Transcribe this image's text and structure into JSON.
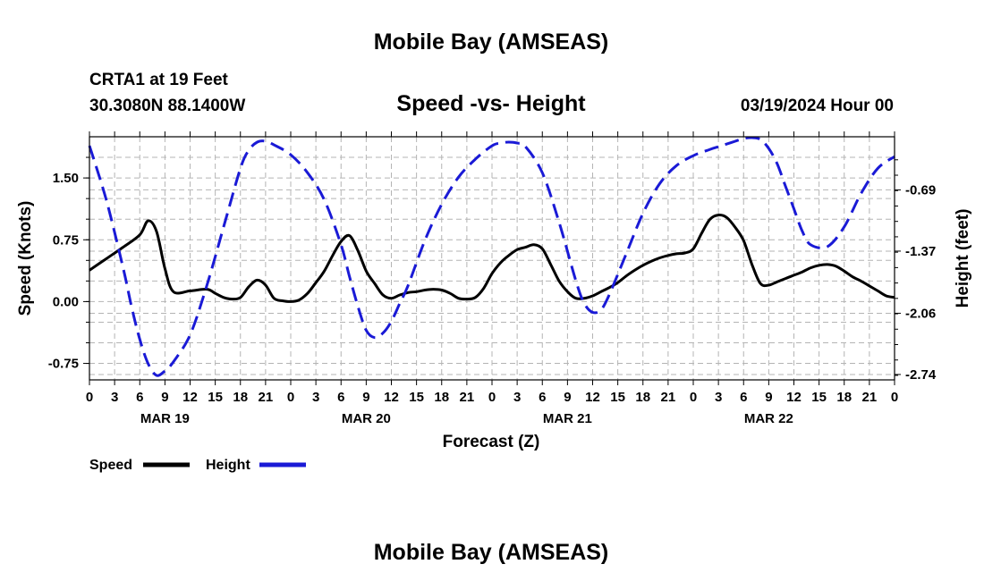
{
  "chart_data": {
    "type": "line",
    "title": "Mobile Bay (AMSEAS)",
    "footer_title": "Mobile Bay (AMSEAS)",
    "station": "CRTA1 at 19 Feet",
    "location": "30.3080N  88.1400W",
    "subtitle": "Speed -vs- Height",
    "run": "03/19/2024 Hour 00",
    "xlabel": "Forecast (Z)",
    "ylabel_left": "Speed (Knots)",
    "ylabel_right": "Height (feet)",
    "x_range_hours": [
      0,
      96
    ],
    "ylim_left": [
      -0.95,
      2.0
    ],
    "ylim_right": [
      -2.8,
      -0.1
    ],
    "left_ticks": [
      "1.50",
      "0.75",
      "0.00",
      "-0.75"
    ],
    "left_tick_values": [
      1.5,
      0.75,
      0.0,
      -0.75
    ],
    "right_ticks": [
      "-0.69",
      "-1.37",
      "-2.06",
      "-2.74"
    ],
    "right_tick_values": [
      -0.69,
      -1.37,
      -2.06,
      -2.74
    ],
    "x_tick_labels": [
      "0",
      "3",
      "6",
      "9",
      "12",
      "15",
      "18",
      "21",
      "0",
      "3",
      "6",
      "9",
      "12",
      "15",
      "18",
      "21",
      "0",
      "3",
      "6",
      "9",
      "12",
      "15",
      "18",
      "21",
      "0",
      "3",
      "6",
      "9",
      "12",
      "15",
      "18",
      "21",
      "0"
    ],
    "day_labels": [
      {
        "label": "MAR 19",
        "hour": 9
      },
      {
        "label": "MAR 20",
        "hour": 33
      },
      {
        "label": "MAR 21",
        "hour": 57
      },
      {
        "label": "MAR 22",
        "hour": 81
      }
    ],
    "grid": true,
    "legend": {
      "placement": "bottom-left",
      "items": [
        "Speed",
        "Height"
      ]
    },
    "colors": {
      "speed": "#000000",
      "height": "#1a1ad6",
      "grid": "#b4b4b4"
    },
    "series": [
      {
        "name": "Speed",
        "axis": "left",
        "x": [
          0,
          2,
          4,
          6,
          7,
          8,
          9,
          10,
          12,
          14,
          15,
          16,
          17,
          18,
          19,
          20,
          21,
          22,
          23,
          24,
          25,
          26,
          27,
          28,
          29,
          30,
          31,
          32,
          33,
          34,
          35,
          36,
          37,
          38,
          39,
          40,
          41,
          42,
          43,
          44,
          45,
          46,
          47,
          48,
          49,
          50,
          51,
          52,
          53,
          54,
          55,
          56,
          57,
          58,
          59,
          60,
          61,
          62,
          63,
          64,
          65,
          66,
          67,
          68,
          69,
          70,
          71,
          72,
          73,
          74,
          75,
          76,
          77,
          78,
          79,
          80,
          81,
          82,
          83,
          84,
          85,
          86,
          87,
          88,
          89,
          90,
          91,
          92,
          93,
          94,
          95,
          96
        ],
        "values": [
          0.38,
          0.52,
          0.66,
          0.81,
          0.98,
          0.85,
          0.4,
          0.12,
          0.13,
          0.15,
          0.1,
          0.05,
          0.03,
          0.05,
          0.18,
          0.26,
          0.2,
          0.04,
          0.01,
          0.0,
          0.02,
          0.1,
          0.23,
          0.37,
          0.56,
          0.73,
          0.8,
          0.62,
          0.37,
          0.22,
          0.08,
          0.04,
          0.08,
          0.11,
          0.12,
          0.14,
          0.15,
          0.14,
          0.1,
          0.04,
          0.03,
          0.05,
          0.16,
          0.34,
          0.47,
          0.56,
          0.63,
          0.66,
          0.69,
          0.64,
          0.45,
          0.25,
          0.12,
          0.04,
          0.04,
          0.07,
          0.12,
          0.17,
          0.23,
          0.31,
          0.38,
          0.44,
          0.49,
          0.53,
          0.56,
          0.58,
          0.59,
          0.64,
          0.83,
          1.0,
          1.05,
          1.02,
          0.9,
          0.74,
          0.45,
          0.22,
          0.2,
          0.24,
          0.28,
          0.32,
          0.36,
          0.41,
          0.44,
          0.45,
          0.43,
          0.37,
          0.3,
          0.25,
          0.19,
          0.13,
          0.07,
          0.05
        ]
      },
      {
        "name": "Height",
        "axis": "right",
        "x": [
          0,
          2,
          4,
          5,
          6,
          7,
          8,
          9,
          10,
          12,
          14,
          16,
          18,
          19,
          20,
          21,
          22,
          24,
          26,
          28,
          30,
          31,
          32,
          33,
          34,
          35,
          36,
          37,
          38,
          40,
          42,
          44,
          46,
          48,
          49,
          50,
          51,
          52,
          54,
          56,
          58,
          59,
          60,
          61,
          62,
          64,
          66,
          68,
          70,
          72,
          74,
          75,
          76,
          77,
          78,
          79,
          80,
          81,
          82,
          83,
          84,
          85,
          86,
          88,
          90,
          92,
          94,
          96
        ],
        "values": [
          -0.2,
          -0.8,
          -1.55,
          -1.98,
          -2.35,
          -2.62,
          -2.75,
          -2.7,
          -2.6,
          -2.3,
          -1.75,
          -1.1,
          -0.45,
          -0.25,
          -0.16,
          -0.15,
          -0.19,
          -0.3,
          -0.5,
          -0.8,
          -1.3,
          -1.65,
          -1.98,
          -2.25,
          -2.33,
          -2.28,
          -2.15,
          -1.95,
          -1.75,
          -1.25,
          -0.85,
          -0.55,
          -0.35,
          -0.2,
          -0.17,
          -0.16,
          -0.17,
          -0.21,
          -0.5,
          -1.05,
          -1.7,
          -1.95,
          -2.05,
          -2.02,
          -1.85,
          -1.4,
          -0.95,
          -0.62,
          -0.42,
          -0.31,
          -0.24,
          -0.21,
          -0.18,
          -0.15,
          -0.12,
          -0.11,
          -0.13,
          -0.23,
          -0.4,
          -0.65,
          -0.9,
          -1.15,
          -1.3,
          -1.32,
          -1.1,
          -0.73,
          -0.45,
          -0.32
        ]
      }
    ]
  }
}
